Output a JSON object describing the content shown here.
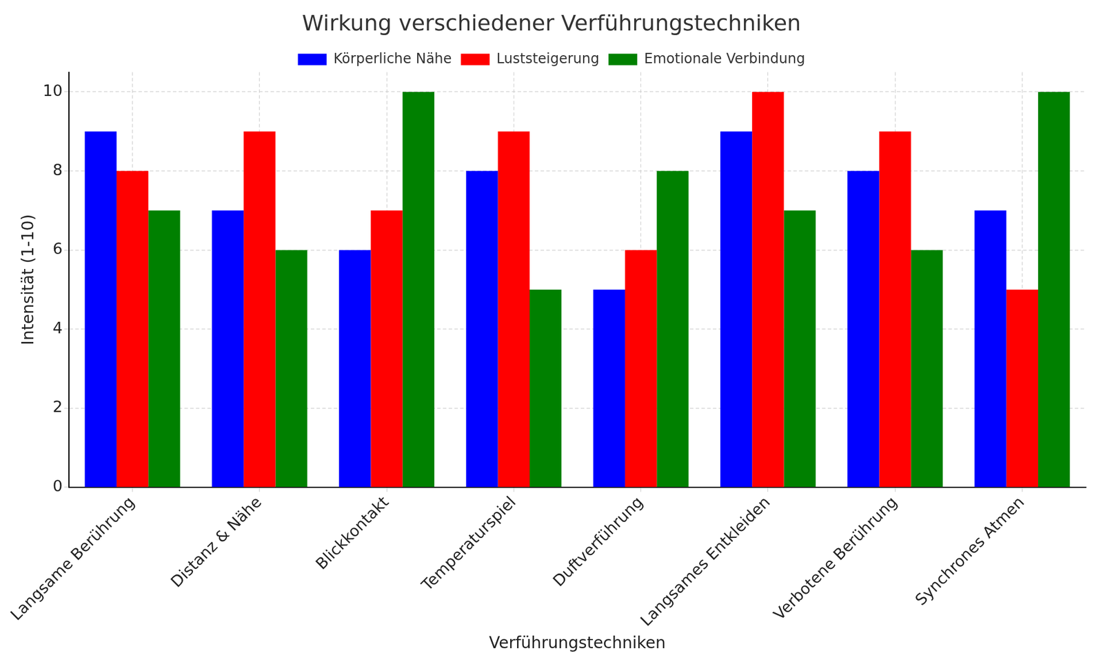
{
  "chart_data": {
    "type": "bar",
    "title": "Wirkung verschiedener Verführungstechniken",
    "x_label": "Verführungstechniken",
    "y_label": "Intensität (1-10)",
    "categories": [
      "Langsame Berührung",
      "Distanz & Nähe",
      "Blickkontakt",
      "Temperaturspiel",
      "Duftverführung",
      "Langsames Entkleiden",
      "Verbotene Berührung",
      "Synchrones Atmen"
    ],
    "series": [
      {
        "name": "Körperliche Nähe",
        "color": "#0000ff",
        "values": [
          9,
          7,
          6,
          8,
          5,
          9,
          8,
          7
        ]
      },
      {
        "name": "Luststeigerung",
        "color": "#ff0000",
        "values": [
          8,
          9,
          7,
          9,
          6,
          10,
          9,
          5
        ]
      },
      {
        "name": "Emotionale Verbindung",
        "color": "#008000",
        "values": [
          7,
          6,
          10,
          5,
          8,
          7,
          6,
          10
        ]
      }
    ],
    "ylim": [
      0,
      10.5
    ],
    "yticks": [
      0,
      2,
      4,
      6,
      8,
      10
    ],
    "grid": true,
    "legend": "top"
  }
}
